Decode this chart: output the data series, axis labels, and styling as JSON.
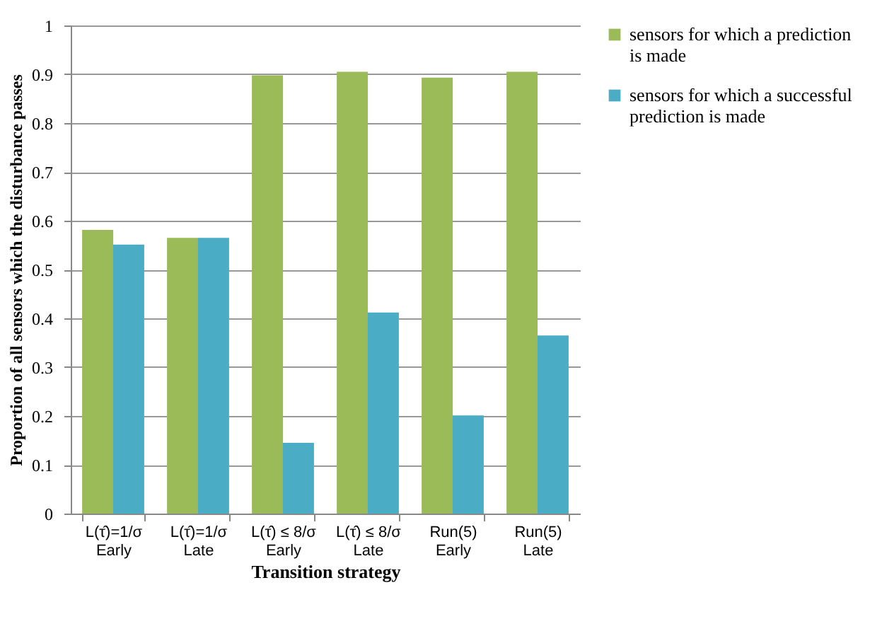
{
  "chart_data": {
    "type": "bar",
    "categories": [
      "L(τ̂)=1/σ\nEarly",
      "L(τ̂)=1/σ\nLate",
      "L(τ̂) ≤ 8/σ\nEarly",
      "L(τ̂) ≤ 8/σ\nLate",
      "Run(5)\nEarly",
      "Run(5)\nLate"
    ],
    "series": [
      {
        "name": "sensors for which a prediction is made",
        "color": "#9bbb59",
        "values": [
          0.581,
          0.565,
          0.898,
          0.905,
          0.893,
          0.905
        ]
      },
      {
        "name": "sensors for which a successful prediction is made",
        "color": "#4bacc6",
        "values": [
          0.551,
          0.565,
          0.145,
          0.412,
          0.201,
          0.365
        ]
      }
    ],
    "xlabel": "Transition strategy",
    "ylabel": "Proportion of all sensors which the disturbance passes",
    "ylim": [
      0,
      1
    ],
    "yticks": [
      0,
      0.1,
      0.2,
      0.3,
      0.4,
      0.5,
      0.6,
      0.7,
      0.8,
      0.9,
      1
    ],
    "grid": "y",
    "legend": "right"
  }
}
